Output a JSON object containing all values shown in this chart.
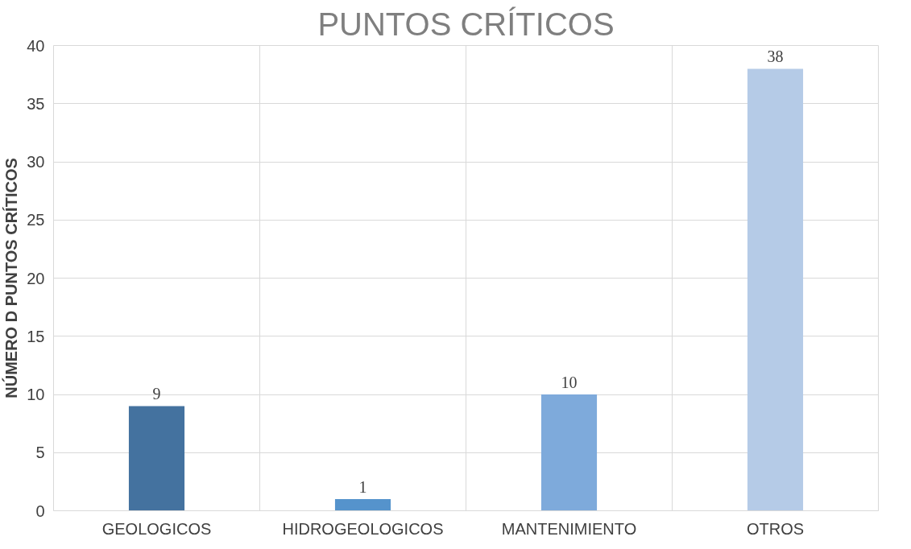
{
  "chart_data": {
    "type": "bar",
    "title": "PUNTOS CRÍTICOS",
    "ylabel": "NÚMERO D PUNTOS CRÍTICOS",
    "categories": [
      "GEOLOGICOS",
      "HIDROGEOLOGICOS",
      "MANTENIMIENTO",
      "OTROS"
    ],
    "values": [
      9,
      1,
      10,
      38
    ],
    "colors": [
      "#44729f",
      "#5593cc",
      "#7eaadb",
      "#b5cbe7"
    ],
    "ylim": [
      0,
      40
    ],
    "yticks": [
      0,
      5,
      10,
      15,
      20,
      25,
      30,
      35,
      40
    ],
    "grid": true,
    "data_labels": true
  }
}
